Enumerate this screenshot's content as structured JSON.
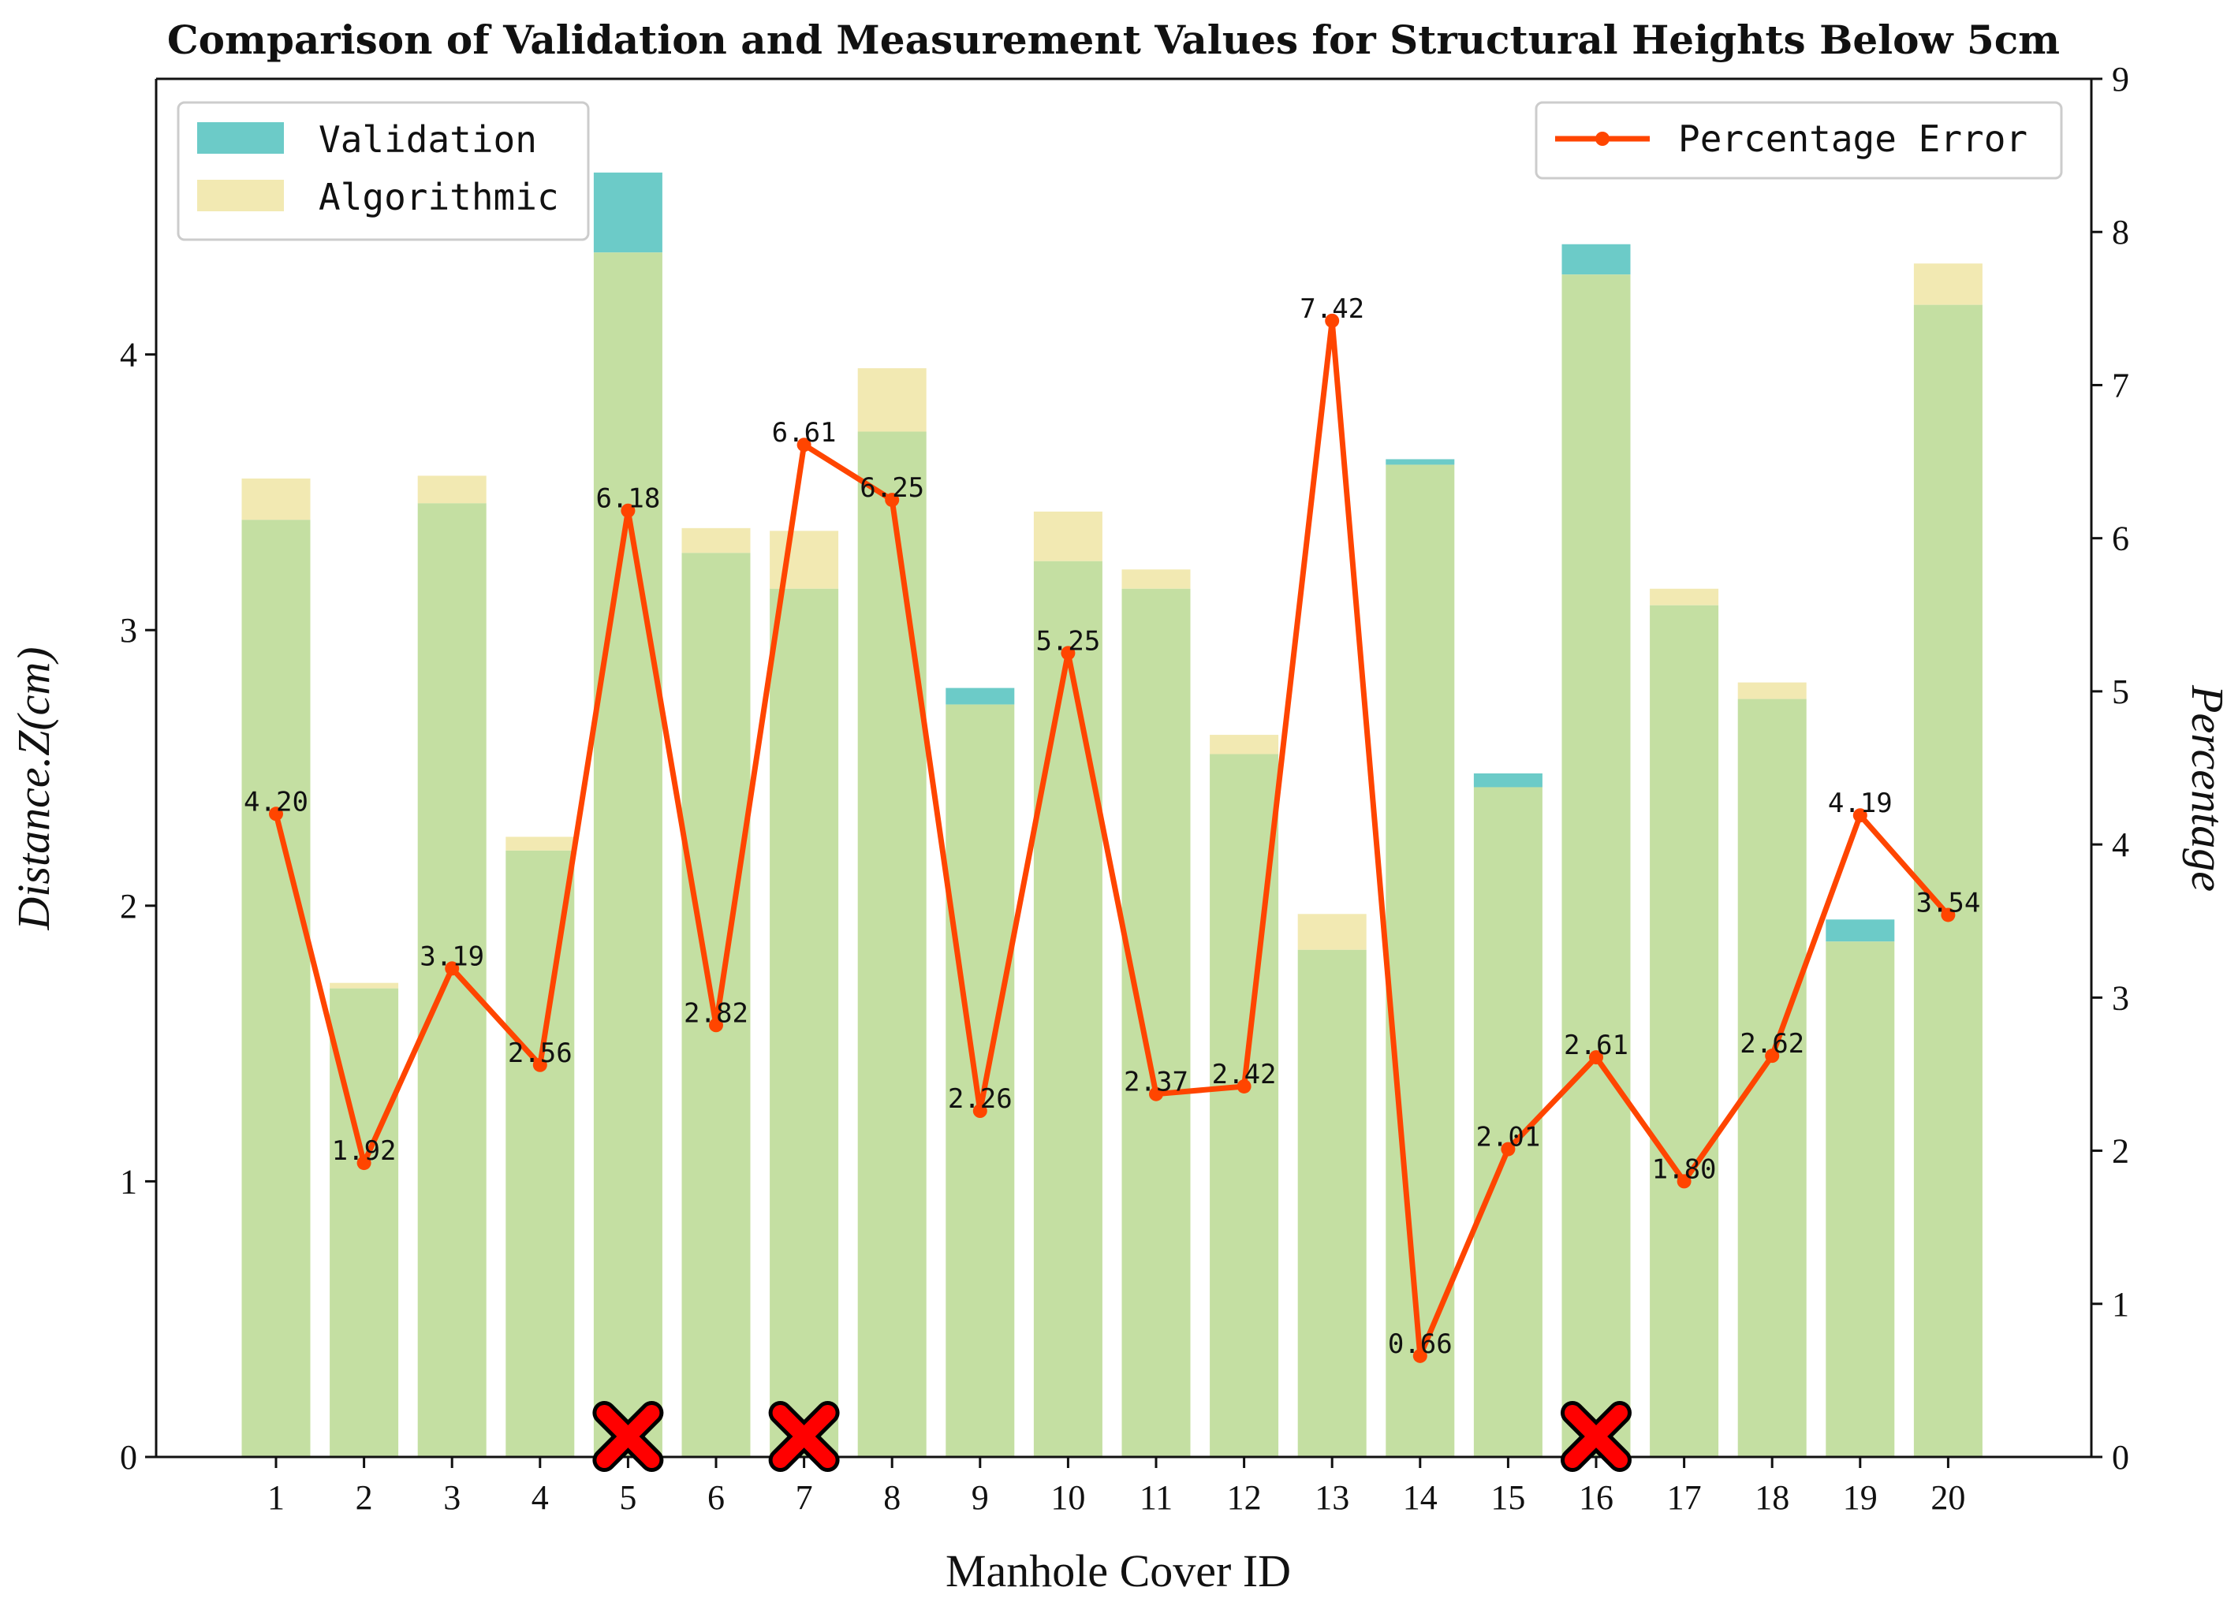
{
  "chart_data": {
    "type": "bar",
    "title": "Comparison of Validation and Measurement Values for Structural Heights Below 5cm",
    "xlabel": "Manhole Cover ID",
    "ylabel": "Distance.Z(cm)",
    "y2label": "Percentage",
    "categories": [
      "1",
      "2",
      "3",
      "4",
      "5",
      "6",
      "7",
      "8",
      "9",
      "10",
      "11",
      "12",
      "13",
      "14",
      "15",
      "16",
      "17",
      "18",
      "19",
      "20"
    ],
    "ylim": [
      0,
      5
    ],
    "y_ticks": [
      "0",
      "1",
      "2",
      "3",
      "4"
    ],
    "y2lim": [
      0,
      9
    ],
    "y2_ticks": [
      "0",
      "1",
      "2",
      "3",
      "4",
      "5",
      "6",
      "7",
      "8",
      "9"
    ],
    "series": [
      {
        "name": "Validation",
        "axis": "left",
        "kind": "bar",
        "color": "#6ccbc8",
        "values": [
          3.4,
          1.7,
          3.46,
          2.2,
          4.66,
          3.28,
          3.15,
          3.72,
          2.79,
          3.25,
          3.15,
          2.55,
          1.84,
          3.62,
          2.48,
          4.4,
          3.09,
          2.75,
          1.95,
          4.18
        ]
      },
      {
        "name": "Algorithmic",
        "axis": "left",
        "kind": "bar",
        "color": "#f2e9b2",
        "values": [
          3.55,
          1.72,
          3.56,
          2.25,
          4.37,
          3.37,
          3.36,
          3.95,
          2.73,
          3.43,
          3.22,
          2.62,
          1.97,
          3.6,
          2.43,
          4.29,
          3.15,
          2.81,
          1.87,
          4.33
        ]
      },
      {
        "name": "Percentage Error",
        "axis": "right",
        "kind": "line",
        "color": "#ff4500",
        "values": [
          4.2,
          1.92,
          3.19,
          2.56,
          6.18,
          2.82,
          6.61,
          6.25,
          2.26,
          5.25,
          2.37,
          2.42,
          7.42,
          0.66,
          2.01,
          2.61,
          1.8,
          2.62,
          4.19,
          3.54
        ],
        "labels": [
          "4.20",
          "1.92",
          "3.19",
          "2.56",
          "6.18",
          "2.82",
          "6.61",
          "6.25",
          "2.26",
          "5.25",
          "2.37",
          "2.42",
          "7.42",
          "0.66",
          "2.01",
          "2.61",
          "1.80",
          "2.62",
          "4.19",
          "3.54"
        ]
      }
    ],
    "overlap_color": "#c4dfa2",
    "marked_ids": [
      "5",
      "7",
      "16"
    ],
    "marker_color": "#ff0000",
    "legend_left": {
      "placement": "top-left",
      "entries": [
        "Validation",
        "Algorithmic"
      ]
    },
    "legend_right": {
      "placement": "top-right",
      "entries": [
        "Percentage Error"
      ]
    },
    "grid": false
  }
}
